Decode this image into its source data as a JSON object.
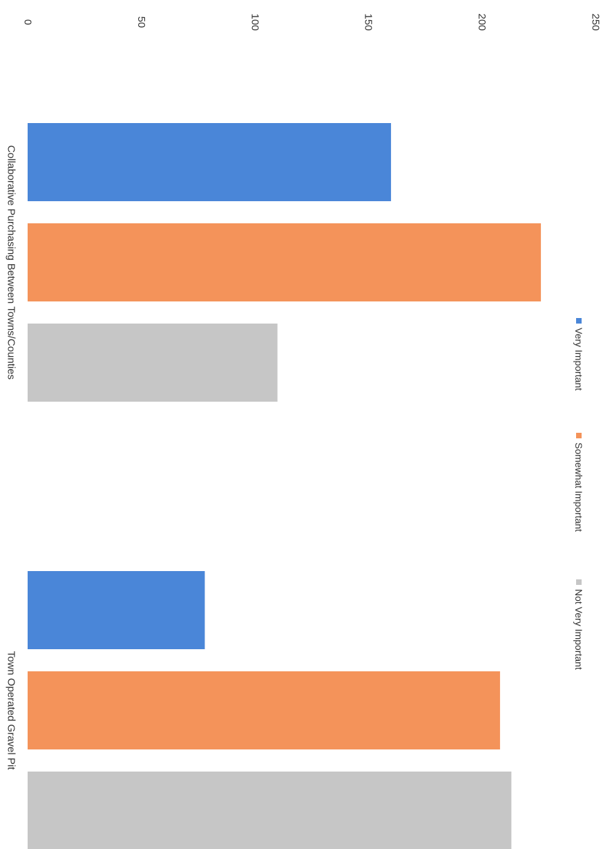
{
  "chart_data": {
    "type": "bar",
    "orientation": "horizontal-bars-rotated-90deg",
    "categories": [
      "Collaborative Purchasing Between Towns/Counties",
      "Town Operated Gravel Pit"
    ],
    "series": [
      {
        "name": "Very Important",
        "color": "#4a86d8",
        "values": [
          160,
          78
        ]
      },
      {
        "name": "Somewhat Important",
        "color": "#f4935a",
        "values": [
          226,
          208
        ]
      },
      {
        "name": "Not Very Important",
        "color": "#c6c6c6",
        "values": [
          110,
          213
        ]
      }
    ],
    "value_axis": {
      "min": 0,
      "max": 250,
      "ticks": [
        "0",
        "50",
        "100",
        "150",
        "200",
        "250"
      ]
    },
    "title": "",
    "xlabel": "",
    "ylabel": "",
    "grid": false,
    "legend": "right-side"
  }
}
